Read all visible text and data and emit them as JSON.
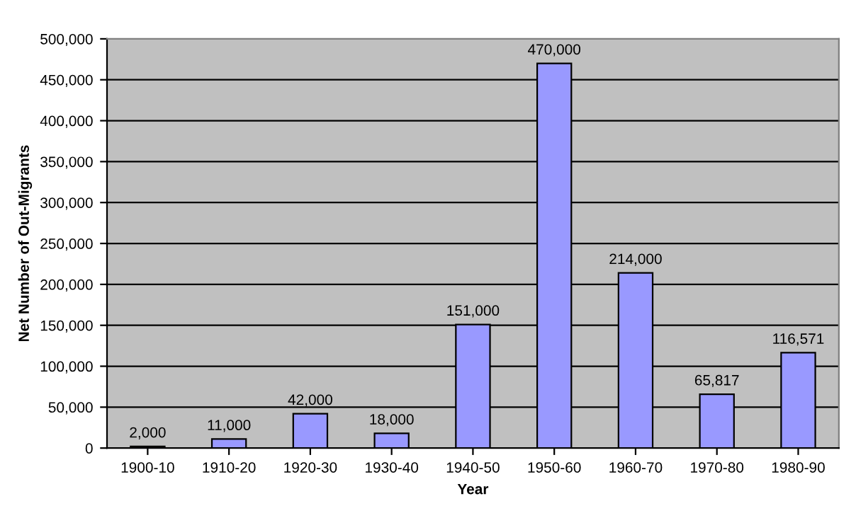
{
  "chart_data": {
    "type": "bar",
    "xlabel": "Year",
    "ylabel": "Net Number of Out-Migrants",
    "categories": [
      "1900-10",
      "1910-20",
      "1920-30",
      "1930-40",
      "1940-50",
      "1950-60",
      "1960-70",
      "1970-80",
      "1980-90"
    ],
    "values": [
      2000,
      11000,
      42000,
      18000,
      151000,
      470000,
      214000,
      65817,
      116571
    ],
    "value_labels": [
      "2,000",
      "11,000",
      "42,000",
      "18,000",
      "151,000",
      "470,000",
      "214,000",
      "65,817",
      "116,571"
    ],
    "color": "#9999ff",
    "ylim": [
      0,
      500000
    ],
    "yticks": [
      {
        "value": 0,
        "label": "0"
      },
      {
        "value": 50000,
        "label": "50,000"
      },
      {
        "value": 100000,
        "label": "100,000"
      },
      {
        "value": 150000,
        "label": "150,000"
      },
      {
        "value": 200000,
        "label": "200,000"
      },
      {
        "value": 250000,
        "label": "250,000"
      },
      {
        "value": 300000,
        "label": "300,000"
      },
      {
        "value": 350000,
        "label": "350,000"
      },
      {
        "value": 400000,
        "label": "400,000"
      },
      {
        "value": 450000,
        "label": "450,000"
      },
      {
        "value": 500000,
        "label": "500,000"
      }
    ],
    "grid": "y",
    "legend": false
  }
}
